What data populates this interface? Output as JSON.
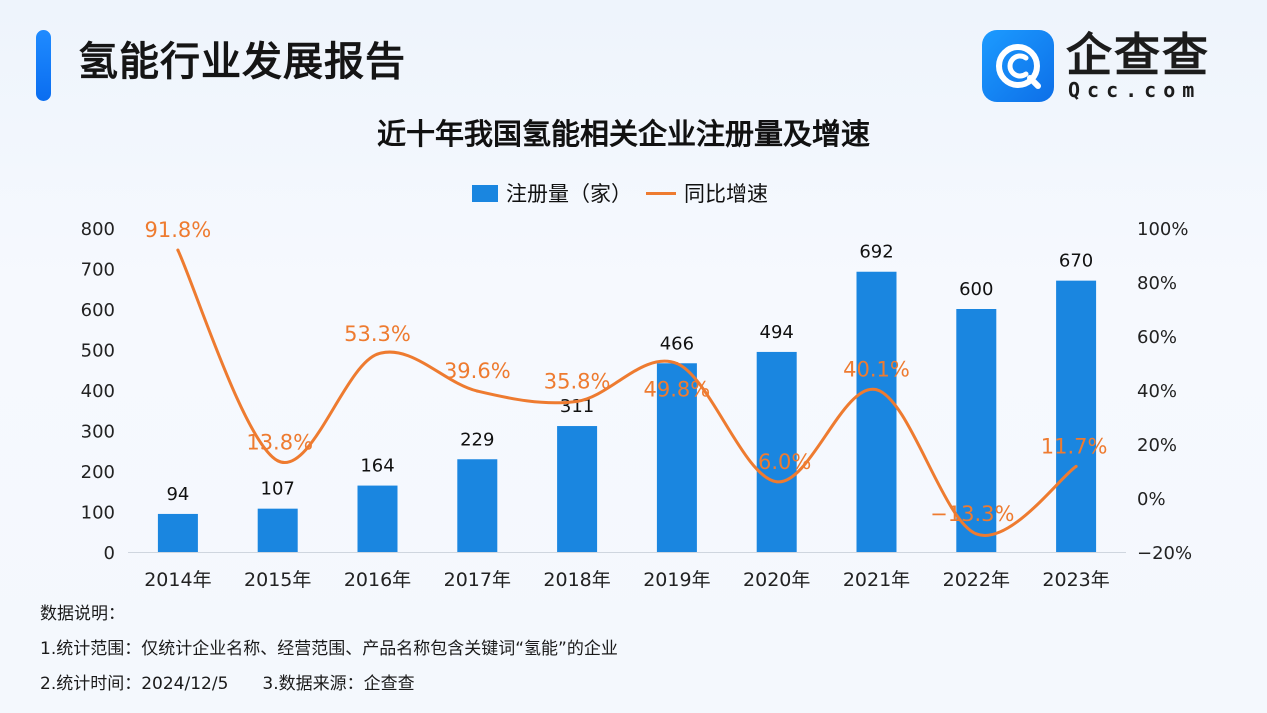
{
  "header": {
    "title": "氢能行业发展报告",
    "logo_cn": "企查查",
    "logo_en": "Qcc.com"
  },
  "chart_data": {
    "type": "bar",
    "title": "近十年我国氢能相关企业注册量及增速",
    "categories": [
      "2014年",
      "2015年",
      "2016年",
      "2017年",
      "2018年",
      "2019年",
      "2020年",
      "2021年",
      "2022年",
      "2023年"
    ],
    "series": [
      {
        "name": "注册量（家）",
        "type": "bar",
        "axis": "left",
        "values": [
          94,
          107,
          164,
          229,
          311,
          466,
          494,
          692,
          600,
          670
        ],
        "labels": [
          "94",
          "107",
          "164",
          "229",
          "311",
          "466",
          "494",
          "692",
          "600",
          "670"
        ],
        "color": "#1a86e0"
      },
      {
        "name": "同比增速",
        "type": "line",
        "axis": "right",
        "values": [
          91.8,
          13.8,
          53.3,
          39.6,
          35.8,
          49.8,
          6.0,
          40.1,
          -13.3,
          11.7
        ],
        "labels": [
          "91.8%",
          "13.8%",
          "53.3%",
          "39.6%",
          "35.8%",
          "49.8%",
          "6.0%",
          "40.1%",
          "−13.3%",
          "11.7%"
        ],
        "color": "#ee7b30"
      }
    ],
    "ylim": [
      0,
      800
    ],
    "yticks": [
      "0",
      "100",
      "200",
      "300",
      "400",
      "500",
      "600",
      "700",
      "800"
    ],
    "y2lim": [
      -20,
      100
    ],
    "y2ticks": [
      "−20%",
      "0%",
      "20%",
      "40%",
      "60%",
      "80%",
      "100%"
    ],
    "legend_position": "top-center",
    "grid": false
  },
  "notes": {
    "heading": "数据说明：",
    "line1": "1.统计范围：仅统计企业名称、经营范围、产品名称包含关键词“氢能”的企业",
    "line2a": "2.统计时间：2024/12/5",
    "line2b": "3.数据来源：企查查"
  }
}
